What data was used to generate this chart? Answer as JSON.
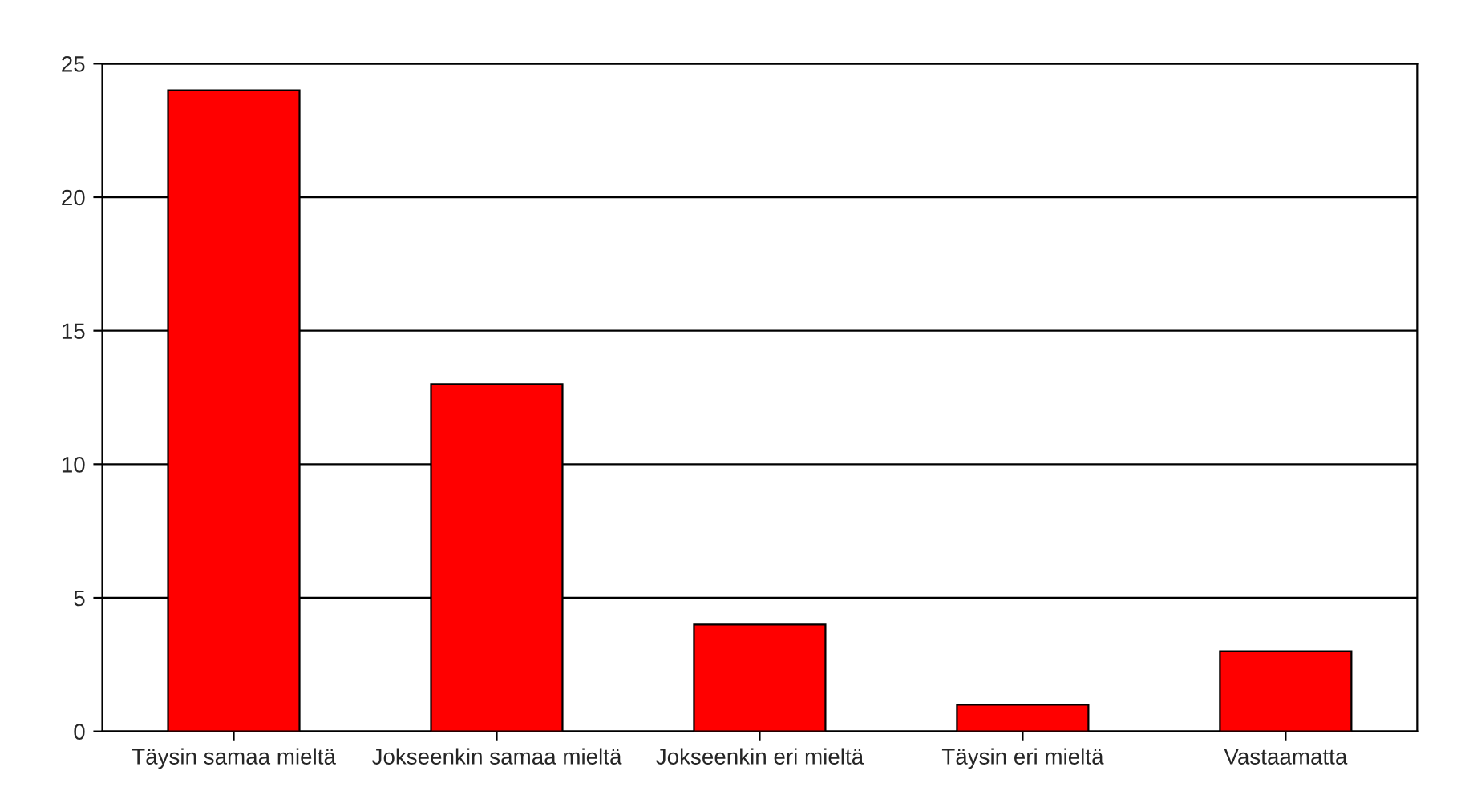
{
  "chart_data": {
    "type": "bar",
    "categories": [
      "Täysin samaa mieltä",
      "Jokseenkin samaa mieltä",
      "Jokseenkin eri mieltä",
      "Täysin eri mieltä",
      "Vastaamatta"
    ],
    "values": [
      24,
      13,
      4,
      1,
      3
    ],
    "color": "#ff0000",
    "ylim": [
      0,
      25
    ],
    "yticks": [
      0,
      5,
      10,
      15,
      20,
      25
    ],
    "grid": "y"
  }
}
